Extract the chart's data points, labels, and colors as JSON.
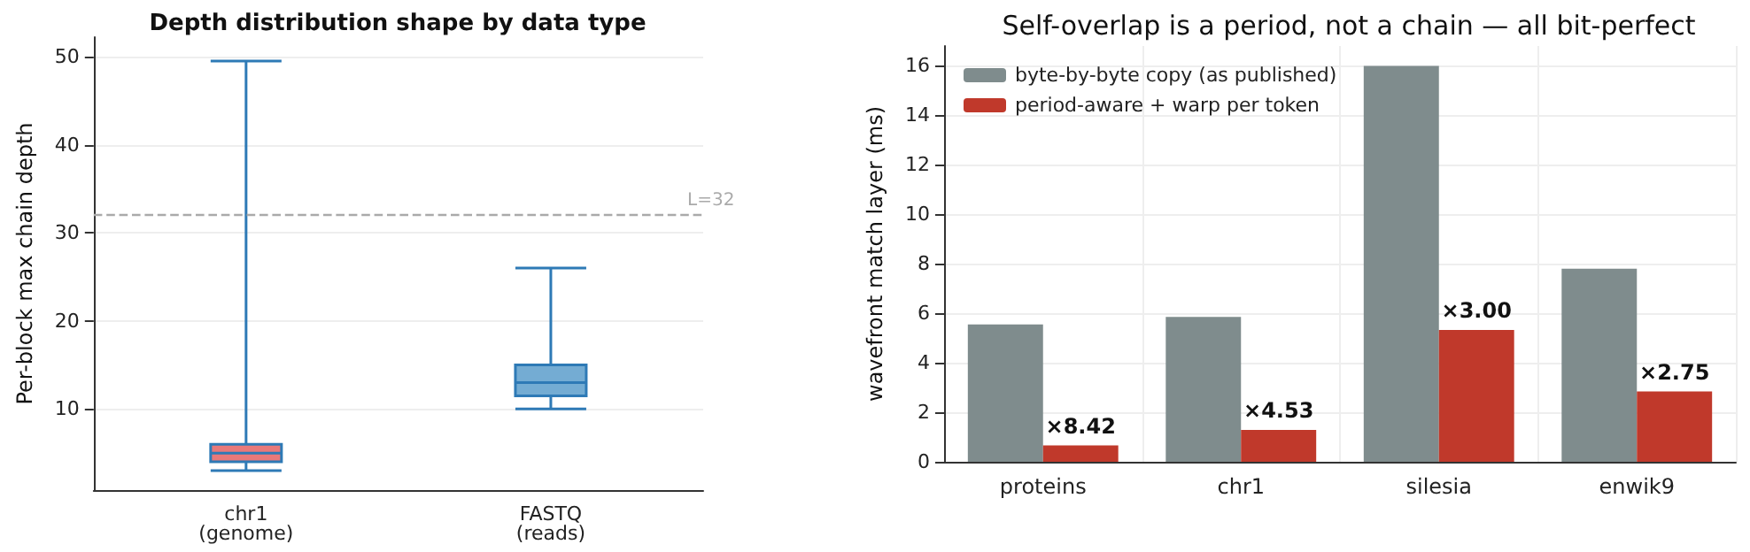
{
  "chart_data": [
    {
      "type": "box",
      "title": "Depth distribution shape by data type",
      "ylabel": "Per-block max chain depth",
      "categories": [
        "chr1\n(genome)",
        "FASTQ\n(reads)"
      ],
      "colors": [
        "#e8797a",
        "#74acd3"
      ],
      "boxes": [
        {
          "low": 3,
          "q1": 4,
          "median": 5,
          "q3": 6,
          "high": 49.5
        },
        {
          "low": 10,
          "q1": 11.5,
          "median": 13,
          "q3": 15,
          "high": 26
        }
      ],
      "ylim": [
        0.8,
        52.2
      ],
      "yticks": [
        10,
        20,
        30,
        40,
        50
      ],
      "grid": "y",
      "ref_lines": [
        {
          "axis": "y",
          "value": 32,
          "label": "L=32",
          "color": "#aaaaaa",
          "line_style": "dashed"
        }
      ]
    },
    {
      "type": "bar",
      "title": "Self-overlap is a period, not a chain — all bit-perfect",
      "ylabel": "wavefront match layer (ms)",
      "categories": [
        "proteins",
        "chr1",
        "silesia",
        "enwik9"
      ],
      "series": [
        {
          "name": "byte-by-byte copy (as published)",
          "color": "#7f8c8d",
          "values": [
            5.55,
            5.85,
            16.0,
            7.8
          ]
        },
        {
          "name": "period-aware + warp per token",
          "color": "#c0392b",
          "values": [
            0.66,
            1.29,
            5.33,
            2.84
          ]
        }
      ],
      "annotations": [
        {
          "text": "×8.42",
          "x": "proteins",
          "y": 0.66
        },
        {
          "text": "×4.53",
          "x": "chr1",
          "y": 1.29
        },
        {
          "text": "×3.00",
          "x": "silesia",
          "y": 5.33
        },
        {
          "text": "×2.75",
          "x": "enwik9",
          "y": 2.84
        }
      ],
      "ylim": [
        0,
        16.8
      ],
      "yticks": [
        0,
        2,
        4,
        6,
        8,
        10,
        12,
        14,
        16
      ],
      "grid": true,
      "legend": "top left"
    }
  ]
}
